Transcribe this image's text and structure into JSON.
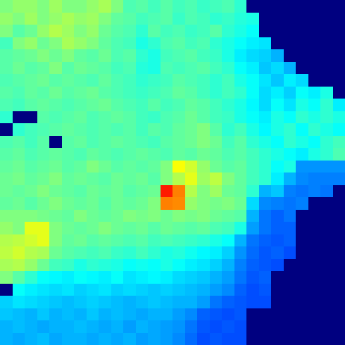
{
  "chart_data": {
    "type": "heatmap",
    "zlim": [
      0,
      1
    ],
    "cells": [
      [
        0.5,
        0.52,
        0.52,
        0.5,
        0.53,
        0.5,
        0.5,
        0.52,
        0.54,
        0.5,
        0.45,
        0.46,
        0.44,
        0.46,
        0.44,
        0.45,
        0.43,
        0.44,
        0.45,
        0.42,
        0,
        0,
        0,
        0,
        0,
        0,
        0,
        0
      ],
      [
        0.52,
        0.5,
        0.53,
        0.5,
        0.52,
        0.54,
        0.52,
        0.53,
        0.5,
        0.47,
        0.46,
        0.44,
        0.45,
        0.46,
        0.43,
        0.45,
        0.44,
        0.42,
        0.43,
        0.41,
        0.4,
        0,
        0,
        0,
        0,
        0,
        0,
        0
      ],
      [
        0.5,
        0.46,
        0.48,
        0.52,
        0.55,
        0.53,
        0.5,
        0.52,
        0.48,
        0.46,
        0.45,
        0.42,
        0.46,
        0.44,
        0.45,
        0.43,
        0.44,
        0.46,
        0.42,
        0.4,
        0.38,
        0,
        0,
        0,
        0,
        0,
        0,
        0
      ],
      [
        0.44,
        0.5,
        0.52,
        0.48,
        0.5,
        0.54,
        0.52,
        0.5,
        0.47,
        0.45,
        0.44,
        0.4,
        0.42,
        0.45,
        0.46,
        0.44,
        0.45,
        0.42,
        0.4,
        0.38,
        0.36,
        0.35,
        0,
        0,
        0,
        0,
        0,
        0
      ],
      [
        0.46,
        0.47,
        0.48,
        0.5,
        0.48,
        0.5,
        0.47,
        0.46,
        0.48,
        0.45,
        0.46,
        0.42,
        0.4,
        0.44,
        0.45,
        0.46,
        0.44,
        0.43,
        0.4,
        0.36,
        0.34,
        0.33,
        0.3,
        0,
        0,
        0,
        0,
        0
      ],
      [
        0.46,
        0.48,
        0.46,
        0.47,
        0.5,
        0.46,
        0.48,
        0.47,
        0.46,
        0.44,
        0.45,
        0.41,
        0.4,
        0.45,
        0.44,
        0.45,
        0.46,
        0.44,
        0.42,
        0.38,
        0.36,
        0.32,
        0.34,
        0.3,
        0,
        0,
        0,
        0
      ],
      [
        0.45,
        0.46,
        0.47,
        0.48,
        0.46,
        0.47,
        0.46,
        0.45,
        0.47,
        0.45,
        0.44,
        0.42,
        0.43,
        0.44,
        0.46,
        0.45,
        0.44,
        0.42,
        0.44,
        0.4,
        0.38,
        0.35,
        0.32,
        0.36,
        0.34,
        0,
        0,
        0
      ],
      [
        0.46,
        0.45,
        0.47,
        0.46,
        0.48,
        0.46,
        0.47,
        0.48,
        0.46,
        0.45,
        0.44,
        0.43,
        0.44,
        0.45,
        0.47,
        0.46,
        0.44,
        0.42,
        0.44,
        0.42,
        0.38,
        0.34,
        0.36,
        0.33,
        0.38,
        0.36,
        0.4,
        0
      ],
      [
        0.45,
        0.44,
        0.46,
        0.47,
        0.46,
        0.45,
        0.46,
        0.47,
        0.48,
        0.46,
        0.45,
        0.44,
        0.46,
        0.44,
        0.45,
        0.47,
        0.46,
        0.44,
        0.42,
        0.4,
        0.37,
        0.34,
        0.38,
        0.35,
        0.4,
        0.38,
        0.42,
        0.36
      ],
      [
        0.42,
        0,
        0,
        0.46,
        0.45,
        0.46,
        0.47,
        0.45,
        0.46,
        0.47,
        0.46,
        0.44,
        0.43,
        0.45,
        0.46,
        0.48,
        0.46,
        0.44,
        0.43,
        0.4,
        0.38,
        0.36,
        0.4,
        0.38,
        0.42,
        0.4,
        0.42,
        0.4
      ],
      [
        0,
        0.42,
        0.44,
        0.45,
        0.46,
        0.47,
        0.46,
        0.45,
        0.46,
        0.45,
        0.46,
        0.44,
        0.46,
        0.45,
        0.47,
        0.48,
        0.5,
        0.46,
        0.42,
        0.44,
        0.4,
        0.37,
        0.4,
        0.42,
        0.38,
        0.42,
        0.4,
        0.38
      ],
      [
        0.45,
        0.46,
        0.44,
        0.46,
        0,
        0.46,
        0.47,
        0.45,
        0.46,
        0.47,
        0.46,
        0.45,
        0.44,
        0.46,
        0.47,
        0.48,
        0.5,
        0.48,
        0.44,
        0.46,
        0.42,
        0.4,
        0.38,
        0.42,
        0.4,
        0.38,
        0.42,
        0.44
      ],
      [
        0.46,
        0.47,
        0.45,
        0.46,
        0.47,
        0.46,
        0.45,
        0.47,
        0.46,
        0.45,
        0.46,
        0.47,
        0.46,
        0.45,
        0.47,
        0.46,
        0.48,
        0.47,
        0.45,
        0.46,
        0.44,
        0.42,
        0.4,
        0.38,
        0.36,
        0.4,
        0.42,
        0.45
      ],
      [
        0.47,
        0.48,
        0.46,
        0.47,
        0.48,
        0.46,
        0.47,
        0.5,
        0.48,
        0.46,
        0.47,
        0.46,
        0.47,
        0.5,
        0.62,
        0.58,
        0.52,
        0.48,
        0.46,
        0.47,
        0.44,
        0.42,
        0.38,
        0.4,
        0.27,
        0.27,
        0.27,
        0.27
      ],
      [
        0.48,
        0.49,
        0.47,
        0.48,
        0.5,
        0.47,
        0.48,
        0.47,
        0.46,
        0.48,
        0.47,
        0.48,
        0.46,
        0.5,
        0.55,
        0.6,
        0.53,
        0.56,
        0.5,
        0.47,
        0.44,
        0.42,
        0.36,
        0.3,
        0.26,
        0.25,
        0.25,
        0.25
      ],
      [
        0.48,
        0.47,
        0.48,
        0.5,
        0.48,
        0.47,
        0.46,
        0.48,
        0.47,
        0.48,
        0.46,
        0.47,
        0.48,
        0.85,
        0.75,
        0.55,
        0.5,
        0.53,
        0.48,
        0.47,
        0.42,
        0.3,
        0.32,
        0.25,
        0.24,
        0.25,
        0.24,
        0
      ],
      [
        0.47,
        0.48,
        0.46,
        0.48,
        0.5,
        0.48,
        0.47,
        0.48,
        0.46,
        0.48,
        0.47,
        0.48,
        0.5,
        0.75,
        0.74,
        0.52,
        0.5,
        0.49,
        0.5,
        0.48,
        0.34,
        0.26,
        0.25,
        0.24,
        0.25,
        0,
        0,
        0
      ],
      [
        0.5,
        0.5,
        0.5,
        0.49,
        0.48,
        0.47,
        0.5,
        0.48,
        0.47,
        0.48,
        0.5,
        0.49,
        0.5,
        0.48,
        0.5,
        0.49,
        0.5,
        0.48,
        0.47,
        0.46,
        0.3,
        0.24,
        0.22,
        0.24,
        0,
        0,
        0,
        0
      ],
      [
        0.52,
        0.5,
        0.6,
        0.6,
        0.5,
        0.48,
        0.47,
        0.48,
        0.5,
        0.48,
        0.47,
        0.48,
        0.46,
        0.48,
        0.47,
        0.46,
        0.47,
        0.45,
        0.44,
        0.4,
        0.28,
        0.24,
        0.22,
        0.22,
        0,
        0,
        0,
        0
      ],
      [
        0.55,
        0.56,
        0.58,
        0.6,
        0.5,
        0.47,
        0.48,
        0.46,
        0.47,
        0.46,
        0.45,
        0.46,
        0.44,
        0.45,
        0.44,
        0.43,
        0.42,
        0.4,
        0.38,
        0.3,
        0.24,
        0.22,
        0.21,
        0.22,
        0,
        0,
        0,
        0
      ],
      [
        0.56,
        0.58,
        0.55,
        0.54,
        0.48,
        0.46,
        0.45,
        0.44,
        0.45,
        0.43,
        0.42,
        0.44,
        0.42,
        0.4,
        0.41,
        0.39,
        0.37,
        0.36,
        0.33,
        0.27,
        0.23,
        0.21,
        0.22,
        0.2,
        0,
        0,
        0,
        0
      ],
      [
        0.54,
        0.55,
        0.52,
        0.48,
        0.44,
        0.43,
        0.4,
        0.42,
        0.41,
        0.4,
        0.38,
        0.39,
        0.38,
        0.4,
        0.38,
        0.36,
        0.35,
        0.33,
        0.3,
        0.25,
        0.22,
        0.21,
        0.2,
        0,
        0,
        0,
        0,
        0
      ],
      [
        0.5,
        0.46,
        0.42,
        0.38,
        0.37,
        0.36,
        0.38,
        0.37,
        0.36,
        0.38,
        0.35,
        0.36,
        0.37,
        0.36,
        0.34,
        0.33,
        0.32,
        0.3,
        0.28,
        0.24,
        0.21,
        0.22,
        0,
        0,
        0,
        0,
        0,
        0
      ],
      [
        0,
        0.38,
        0.36,
        0.35,
        0.34,
        0.35,
        0.33,
        0.34,
        0.35,
        0.33,
        0.34,
        0.33,
        0.32,
        0.33,
        0.32,
        0.31,
        0.3,
        0.28,
        0.26,
        0.22,
        0.2,
        0.21,
        0,
        0,
        0,
        0,
        0,
        0
      ],
      [
        0.33,
        0.35,
        0.34,
        0.33,
        0.32,
        0.31,
        0.32,
        0.33,
        0.32,
        0.31,
        0.3,
        0.31,
        0.32,
        0.31,
        0.3,
        0.3,
        0.28,
        0.24,
        0.22,
        0.21,
        0.2,
        0.2,
        0,
        0,
        0,
        0,
        0,
        0
      ],
      [
        0.32,
        0.31,
        0.3,
        0.32,
        0.3,
        0.31,
        0.3,
        0.32,
        0.3,
        0.31,
        0.3,
        0.29,
        0.3,
        0.3,
        0.28,
        0.26,
        0.22,
        0.21,
        0.2,
        0.21,
        0,
        0,
        0,
        0,
        0,
        0,
        0,
        0
      ],
      [
        0.3,
        0.31,
        0.3,
        0.29,
        0.3,
        0.3,
        0.31,
        0.3,
        0.29,
        0.3,
        0.28,
        0.3,
        0.29,
        0.28,
        0.27,
        0.24,
        0.21,
        0.2,
        0.21,
        0.2,
        0,
        0,
        0,
        0,
        0,
        0,
        0,
        0
      ],
      [
        0.3,
        0.29,
        0.3,
        0.31,
        0.29,
        0.3,
        0.3,
        0.29,
        0.3,
        0.29,
        0.3,
        0.28,
        0.29,
        0.28,
        0.26,
        0.23,
        0.2,
        0.21,
        0.2,
        0.2,
        0,
        0,
        0,
        0,
        0,
        0,
        0,
        0
      ]
    ]
  }
}
